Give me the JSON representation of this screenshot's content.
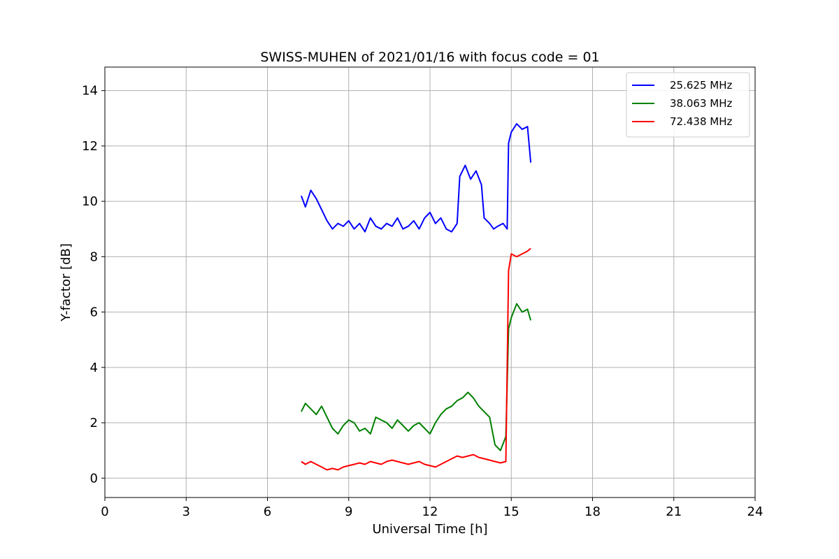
{
  "chart_data": {
    "type": "line",
    "title": "SWISS-MUHEN of 2021/01/16 with focus code = 01",
    "xlabel": "Universal Time [h]",
    "ylabel": "Y-factor [dB]",
    "xlim": [
      0,
      24
    ],
    "ylim": [
      -0.7,
      14.85
    ],
    "xticks": [
      0,
      3,
      6,
      9,
      12,
      15,
      18,
      21,
      24
    ],
    "yticks": [
      0,
      2,
      4,
      6,
      8,
      10,
      12,
      14
    ],
    "grid": true,
    "legend_position": "top-right",
    "series": [
      {
        "name": "25.625 MHz",
        "color": "#0000ff",
        "x": [
          7.25,
          7.4,
          7.6,
          7.8,
          8.0,
          8.2,
          8.4,
          8.6,
          8.8,
          9.0,
          9.2,
          9.4,
          9.6,
          9.8,
          10.0,
          10.2,
          10.4,
          10.6,
          10.8,
          11.0,
          11.2,
          11.4,
          11.6,
          11.8,
          12.0,
          12.2,
          12.4,
          12.6,
          12.8,
          13.0,
          13.1,
          13.3,
          13.5,
          13.7,
          13.9,
          14.0,
          14.2,
          14.35,
          14.5,
          14.7,
          14.85,
          14.9,
          15.0,
          15.2,
          15.4,
          15.6,
          15.72
        ],
        "y": [
          10.2,
          9.8,
          10.4,
          10.1,
          9.7,
          9.3,
          9.0,
          9.2,
          9.1,
          9.3,
          9.0,
          9.2,
          8.9,
          9.4,
          9.1,
          9.0,
          9.2,
          9.1,
          9.4,
          9.0,
          9.1,
          9.3,
          9.0,
          9.4,
          9.6,
          9.2,
          9.4,
          9.0,
          8.9,
          9.2,
          10.9,
          11.3,
          10.8,
          11.1,
          10.6,
          9.4,
          9.2,
          9.0,
          9.1,
          9.2,
          9.0,
          12.1,
          12.5,
          12.8,
          12.6,
          12.7,
          11.4
        ]
      },
      {
        "name": "38.063 MHz",
        "color": "#008000",
        "x": [
          7.25,
          7.4,
          7.6,
          7.8,
          8.0,
          8.2,
          8.4,
          8.6,
          8.8,
          9.0,
          9.2,
          9.4,
          9.6,
          9.8,
          10.0,
          10.2,
          10.4,
          10.6,
          10.8,
          11.0,
          11.2,
          11.4,
          11.6,
          11.8,
          12.0,
          12.2,
          12.4,
          12.6,
          12.8,
          13.0,
          13.2,
          13.4,
          13.6,
          13.8,
          14.0,
          14.2,
          14.4,
          14.6,
          14.8,
          14.9,
          15.0,
          15.2,
          15.4,
          15.6,
          15.72
        ],
        "y": [
          2.4,
          2.7,
          2.5,
          2.3,
          2.6,
          2.2,
          1.8,
          1.6,
          1.9,
          2.1,
          2.0,
          1.7,
          1.8,
          1.6,
          2.2,
          2.1,
          2.0,
          1.8,
          2.1,
          1.9,
          1.7,
          1.9,
          2.0,
          1.8,
          1.6,
          2.0,
          2.3,
          2.5,
          2.6,
          2.8,
          2.9,
          3.1,
          2.9,
          2.6,
          2.4,
          2.2,
          1.2,
          1.0,
          1.5,
          5.4,
          5.8,
          6.3,
          6.0,
          6.1,
          5.7
        ]
      },
      {
        "name": "72.438 MHz",
        "color": "#ff0000",
        "x": [
          7.25,
          7.4,
          7.6,
          7.8,
          8.0,
          8.2,
          8.4,
          8.6,
          8.8,
          9.0,
          9.2,
          9.4,
          9.6,
          9.8,
          10.0,
          10.2,
          10.4,
          10.6,
          10.8,
          11.0,
          11.2,
          11.4,
          11.6,
          11.8,
          12.0,
          12.2,
          12.4,
          12.6,
          12.8,
          13.0,
          13.2,
          13.4,
          13.6,
          13.8,
          14.0,
          14.2,
          14.4,
          14.6,
          14.8,
          14.9,
          15.0,
          15.2,
          15.4,
          15.6,
          15.72
        ],
        "y": [
          0.6,
          0.5,
          0.6,
          0.5,
          0.4,
          0.3,
          0.35,
          0.3,
          0.4,
          0.45,
          0.5,
          0.55,
          0.5,
          0.6,
          0.55,
          0.5,
          0.6,
          0.65,
          0.6,
          0.55,
          0.5,
          0.55,
          0.6,
          0.5,
          0.45,
          0.4,
          0.5,
          0.6,
          0.7,
          0.8,
          0.75,
          0.8,
          0.85,
          0.75,
          0.7,
          0.65,
          0.6,
          0.55,
          0.6,
          7.5,
          8.1,
          8.0,
          8.1,
          8.2,
          8.3
        ]
      }
    ]
  }
}
